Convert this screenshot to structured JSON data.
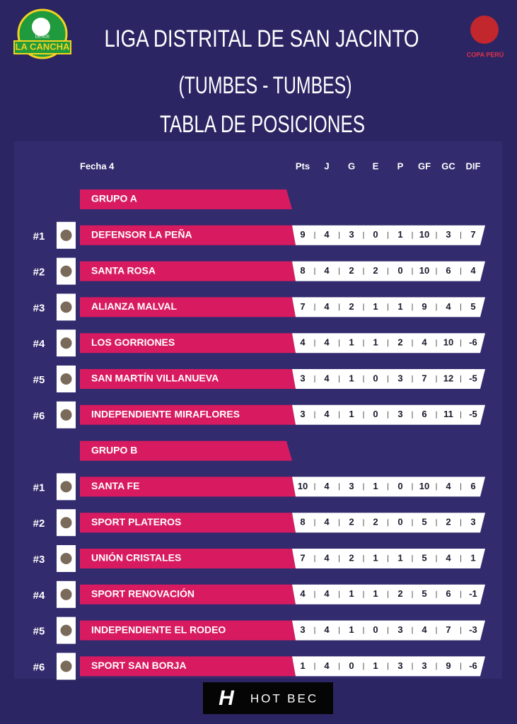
{
  "header": {
    "title": "LIGA DISTRITAL DE SAN JACINTO",
    "subtitle": "(TUMBES - TUMBES)",
    "heading": "TABLA DE POSICIONES"
  },
  "logos": {
    "left": "LA CANCHA",
    "left_small": "DESDE",
    "right": "COPA PERÚ"
  },
  "table": {
    "round": "Fecha 4",
    "columns": [
      "Pts",
      "J",
      "G",
      "E",
      "P",
      "GF",
      "GC",
      "DIF"
    ],
    "groups": [
      {
        "name": "GRUPO A",
        "rows": [
          {
            "rank": "#1",
            "team": "DEFENSOR LA PEÑA",
            "stats": [
              9,
              4,
              3,
              0,
              1,
              10,
              3,
              7
            ]
          },
          {
            "rank": "#2",
            "team": "SANTA ROSA",
            "stats": [
              8,
              4,
              2,
              2,
              0,
              10,
              6,
              4
            ]
          },
          {
            "rank": "#3",
            "team": "ALIANZA MALVAL",
            "stats": [
              7,
              4,
              2,
              1,
              1,
              9,
              4,
              5
            ]
          },
          {
            "rank": "#4",
            "team": "LOS GORRIONES",
            "stats": [
              4,
              4,
              1,
              1,
              2,
              4,
              10,
              -6
            ]
          },
          {
            "rank": "#5",
            "team": "SAN MARTÍN VILLANUEVA",
            "stats": [
              3,
              4,
              1,
              0,
              3,
              7,
              12,
              -5
            ]
          },
          {
            "rank": "#6",
            "team": "INDEPENDIENTE MIRAFLORES",
            "stats": [
              3,
              4,
              1,
              0,
              3,
              6,
              11,
              -5
            ]
          }
        ]
      },
      {
        "name": "GRUPO B",
        "rows": [
          {
            "rank": "#1",
            "team": "SANTA FE",
            "stats": [
              10,
              4,
              3,
              1,
              0,
              10,
              4,
              6
            ]
          },
          {
            "rank": "#2",
            "team": "SPORT PLATEROS",
            "stats": [
              8,
              4,
              2,
              2,
              0,
              5,
              2,
              3
            ]
          },
          {
            "rank": "#3",
            "team": "UNIÓN CRISTALES",
            "stats": [
              7,
              4,
              2,
              1,
              1,
              5,
              4,
              1
            ]
          },
          {
            "rank": "#4",
            "team": "SPORT RENOVACIÓN",
            "stats": [
              4,
              4,
              1,
              1,
              2,
              5,
              6,
              -1
            ]
          },
          {
            "rank": "#5",
            "team": "INDEPENDIENTE EL RODEO",
            "stats": [
              3,
              4,
              1,
              0,
              3,
              4,
              7,
              -3
            ]
          },
          {
            "rank": "#6",
            "team": "SPORT SAN BORJA",
            "stats": [
              1,
              4,
              0,
              1,
              3,
              3,
              9,
              -6
            ]
          }
        ]
      }
    ]
  },
  "footer": "HOT BEC"
}
